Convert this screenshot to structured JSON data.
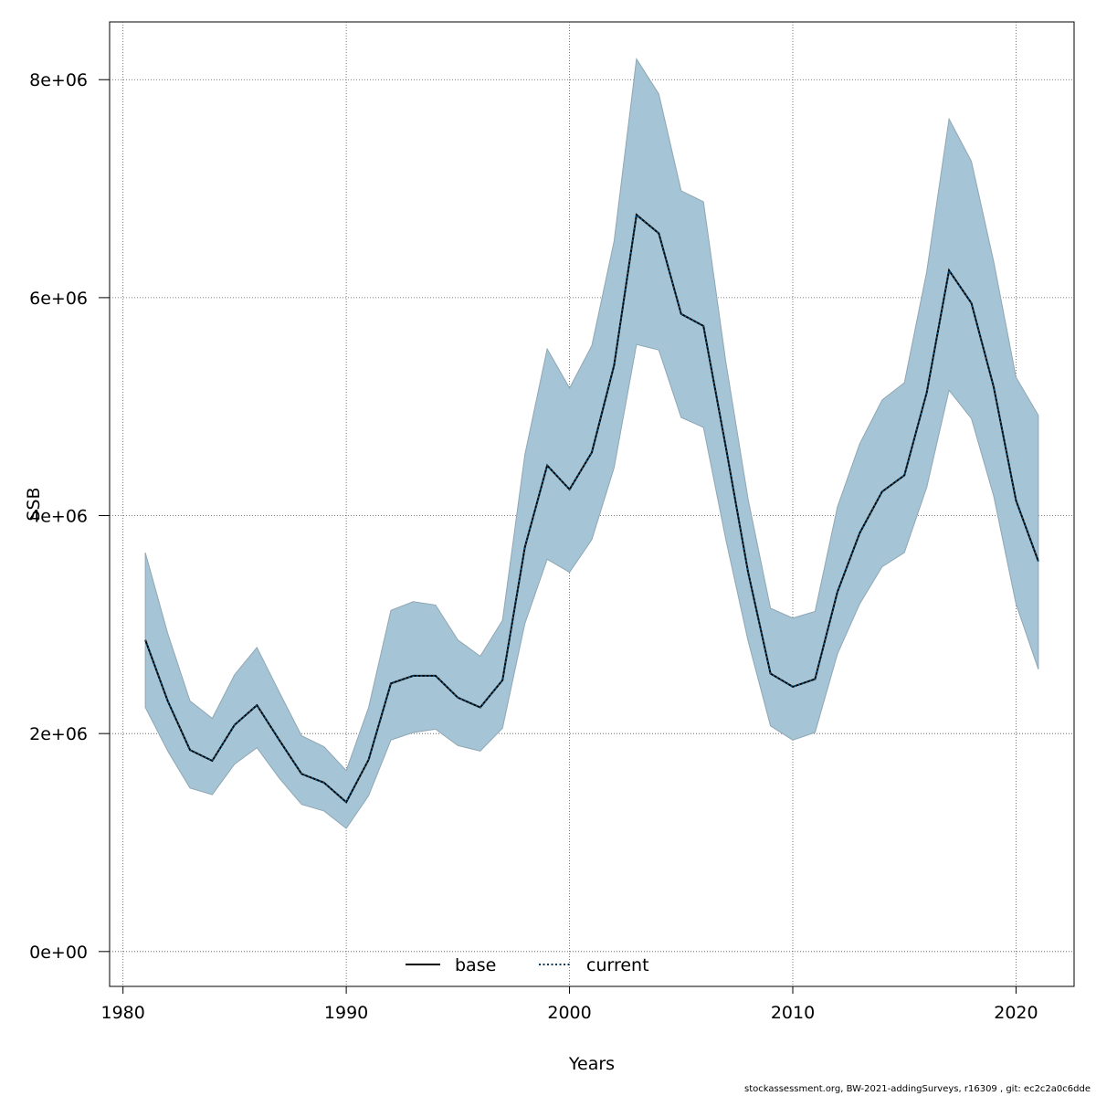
{
  "chart_data": {
    "type": "area",
    "xlabel": "Years",
    "ylabel": "SSB",
    "xlim": [
      1979.4,
      2022.6
    ],
    "ylim": [
      -320000,
      8530000
    ],
    "x_ticks": [
      1980,
      1990,
      2000,
      2010,
      2020
    ],
    "x_tick_labels": [
      "1980",
      "1990",
      "2000",
      "2010",
      "2020"
    ],
    "y_ticks": [
      0,
      2000000,
      4000000,
      6000000,
      8000000
    ],
    "y_tick_labels": [
      "0e+00",
      "2e+06",
      "4e+06",
      "6e+06",
      "8e+06"
    ],
    "grid": true,
    "legend_placement": "bottom",
    "legend": [
      {
        "name": "base",
        "style": "solid",
        "color": "#000000"
      },
      {
        "name": "current",
        "style": "dotted",
        "color": "#0b3c5d"
      }
    ],
    "band_color": "#a5c4d5",
    "band_edge_color": "#8fa7b4",
    "x": [
      1981,
      1982,
      1983,
      1984,
      1985,
      1986,
      1987,
      1988,
      1989,
      1990,
      1991,
      1992,
      1993,
      1994,
      1995,
      1996,
      1997,
      1998,
      1999,
      2000,
      2001,
      2002,
      2003,
      2004,
      2005,
      2006,
      2007,
      2008,
      2009,
      2010,
      2011,
      2012,
      2013,
      2014,
      2015,
      2016,
      2017,
      2018,
      2019,
      2020,
      2021
    ],
    "series": [
      {
        "name": "current",
        "values": [
          2860000,
          2300000,
          1850000,
          1750000,
          2080000,
          2260000,
          1940000,
          1630000,
          1550000,
          1370000,
          1760000,
          2460000,
          2530000,
          2530000,
          2330000,
          2240000,
          2490000,
          3710000,
          4460000,
          4240000,
          4580000,
          5380000,
          6760000,
          6590000,
          5850000,
          5740000,
          4630000,
          3480000,
          2550000,
          2430000,
          2500000,
          3300000,
          3840000,
          4220000,
          4370000,
          5130000,
          6250000,
          5950000,
          5180000,
          4140000,
          3580000
        ]
      }
    ],
    "band_upper": [
      3660000,
      2920000,
      2300000,
      2140000,
      2540000,
      2790000,
      2380000,
      1980000,
      1880000,
      1660000,
      2240000,
      3130000,
      3210000,
      3180000,
      2860000,
      2710000,
      3040000,
      4560000,
      5530000,
      5170000,
      5560000,
      6520000,
      8190000,
      7870000,
      6980000,
      6880000,
      5410000,
      4150000,
      3150000,
      3060000,
      3120000,
      4080000,
      4660000,
      5060000,
      5220000,
      6240000,
      7640000,
      7250000,
      6330000,
      5270000,
      4920000
    ],
    "band_lower": [
      2240000,
      1840000,
      1500000,
      1440000,
      1720000,
      1870000,
      1590000,
      1350000,
      1290000,
      1130000,
      1430000,
      1940000,
      2010000,
      2040000,
      1890000,
      1840000,
      2050000,
      3010000,
      3600000,
      3480000,
      3780000,
      4440000,
      5570000,
      5520000,
      4900000,
      4810000,
      3780000,
      2850000,
      2070000,
      1940000,
      2010000,
      2730000,
      3190000,
      3530000,
      3660000,
      4260000,
      5150000,
      4890000,
      4180000,
      3190000,
      2590000
    ]
  },
  "footer": {
    "text": "stockassessment.org, BW-2021-addingSurveys, r16309 , git: ec2c2a0c6dde"
  }
}
